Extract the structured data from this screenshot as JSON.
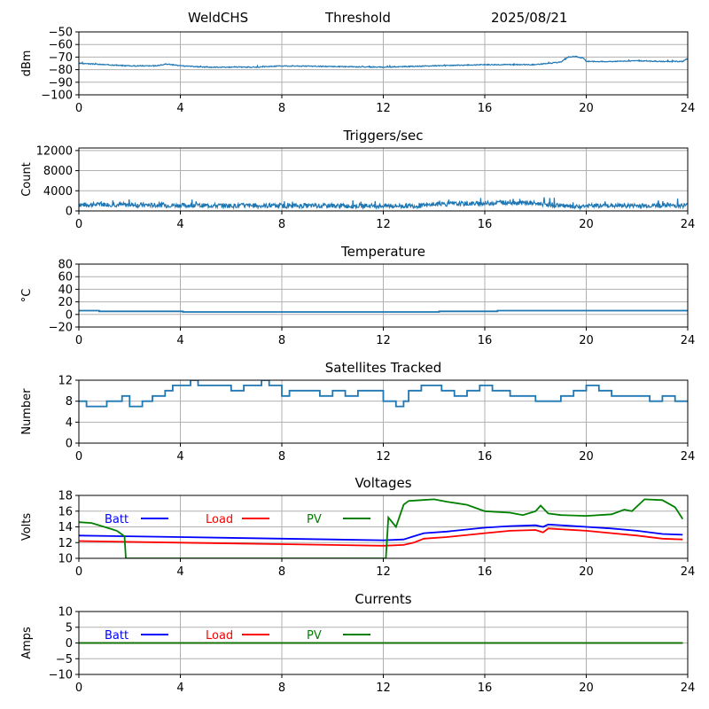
{
  "header": {
    "station": "WeldCHS",
    "mode": "Threshold",
    "date": "2025/08/21"
  },
  "colors": {
    "series": "#1f77b4",
    "batt": "#0000ff",
    "load": "#ff0000",
    "pv": "#008000",
    "grid": "#b0b0b0"
  },
  "chart_data": [
    {
      "type": "line",
      "title": "",
      "ylabel": "dBm",
      "xlim": [
        0,
        24
      ],
      "xticks": [
        0,
        4,
        8,
        12,
        16,
        20,
        24
      ],
      "ylim": [
        -100,
        -50
      ],
      "yticks": [
        -100,
        -90,
        -80,
        -70,
        -60,
        -50
      ],
      "grid": true,
      "series": [
        {
          "color": "#1f77b4",
          "noise": 0.35,
          "seed": 3,
          "x": [
            0,
            1,
            2,
            3,
            3.5,
            4,
            5,
            6,
            7,
            8,
            10,
            12,
            14,
            16,
            18,
            19,
            19.3,
            19.6,
            19.9,
            20,
            21,
            22,
            23,
            23.8,
            24
          ],
          "y": [
            -75,
            -76,
            -77,
            -77,
            -75.5,
            -77,
            -78,
            -78,
            -78,
            -77,
            -77.5,
            -78,
            -77,
            -76,
            -76,
            -74,
            -70,
            -69.5,
            -71,
            -73.5,
            -73.5,
            -73,
            -73.5,
            -73.5,
            -71
          ]
        }
      ]
    },
    {
      "type": "line",
      "title": "Triggers/sec",
      "ylabel": "Count",
      "xlim": [
        0,
        24
      ],
      "xticks": [
        0,
        4,
        8,
        12,
        16,
        20,
        24
      ],
      "ylim": [
        0,
        12500
      ],
      "yticks": [
        0,
        4000,
        8000,
        12000
      ],
      "grid": true,
      "series": [
        {
          "color": "#1f77b4",
          "noise": 450,
          "seed": 7,
          "x": [
            0,
            1,
            2,
            4,
            8,
            12,
            13.5,
            14,
            16,
            17,
            18,
            19,
            19.5,
            20,
            24
          ],
          "y": [
            1200,
            1300,
            1200,
            1100,
            1000,
            1000,
            1000,
            1300,
            1500,
            1700,
            1500,
            1100,
            700,
            1000,
            1100
          ]
        }
      ]
    },
    {
      "type": "line",
      "title": "Temperature",
      "ylabel": "°C",
      "xlim": [
        0,
        24
      ],
      "xticks": [
        0,
        4,
        8,
        12,
        16,
        20,
        24
      ],
      "ylim": [
        -20,
        80
      ],
      "yticks": [
        -20,
        0,
        20,
        40,
        60,
        80
      ],
      "grid": true,
      "series": [
        {
          "color": "#1f77b4",
          "step": true,
          "x": [
            0,
            0.8,
            4.1,
            14.2,
            16.5,
            24
          ],
          "y": [
            6,
            5,
            4,
            5,
            6,
            6
          ]
        }
      ]
    },
    {
      "type": "line",
      "title": "Satellites Tracked",
      "ylabel": "Number",
      "xlim": [
        0,
        24
      ],
      "xticks": [
        0,
        4,
        8,
        12,
        16,
        20,
        24
      ],
      "ylim": [
        0,
        12
      ],
      "yticks": [
        0,
        4,
        8,
        12
      ],
      "grid": true,
      "series": [
        {
          "color": "#1f77b4",
          "step": true,
          "x": [
            0,
            0.3,
            0.6,
            1.1,
            1.7,
            2,
            2.5,
            2.9,
            3.4,
            3.7,
            4.4,
            4.7,
            5,
            6,
            6.5,
            7.2,
            7.5,
            8,
            8.3,
            9,
            9.5,
            10,
            10.5,
            11,
            12,
            12.5,
            12.8,
            13,
            13.5,
            14.3,
            14.8,
            15.3,
            15.8,
            16.3,
            17,
            18,
            19,
            19.5,
            20,
            20.5,
            21,
            22,
            22.5,
            23,
            23.5,
            24
          ],
          "y": [
            8,
            7,
            7,
            8,
            9,
            7,
            8,
            9,
            10,
            11,
            12,
            11,
            11,
            10,
            11,
            12,
            11,
            9,
            10,
            10,
            9,
            10,
            9,
            10,
            8,
            7,
            8,
            10,
            11,
            10,
            9,
            10,
            11,
            10,
            9,
            8,
            9,
            10,
            11,
            10,
            9,
            9,
            8,
            9,
            8,
            8
          ]
        }
      ]
    },
    {
      "type": "line",
      "title": "Voltages",
      "ylabel": "Volts",
      "xlim": [
        0,
        24
      ],
      "xticks": [
        0,
        4,
        8,
        12,
        16,
        20,
        24
      ],
      "ylim": [
        10,
        18
      ],
      "yticks": [
        10,
        12,
        14,
        16,
        18
      ],
      "grid": true,
      "legend": [
        {
          "label": "Batt",
          "color": "#0000ff"
        },
        {
          "label": "Load",
          "color": "#ff0000"
        },
        {
          "label": "PV",
          "color": "#008000"
        }
      ],
      "series": [
        {
          "name": "Batt",
          "color": "#0000ff",
          "x": [
            0,
            4,
            8,
            12,
            12.8,
            13.2,
            13.6,
            14.5,
            16,
            17,
            18,
            18.3,
            18.5,
            20,
            21,
            22,
            23,
            23.8
          ],
          "y": [
            12.9,
            12.7,
            12.5,
            12.3,
            12.4,
            12.8,
            13.2,
            13.4,
            13.9,
            14.1,
            14.2,
            14.0,
            14.3,
            14.0,
            13.8,
            13.5,
            13.1,
            13.0
          ]
        },
        {
          "name": "Load",
          "color": "#ff0000",
          "x": [
            0,
            4,
            8,
            12,
            12.8,
            13.2,
            13.6,
            14.5,
            16,
            17,
            18,
            18.3,
            18.5,
            20,
            21,
            22,
            23,
            23.8
          ],
          "y": [
            12.2,
            12.0,
            11.8,
            11.6,
            11.7,
            12.0,
            12.5,
            12.7,
            13.2,
            13.5,
            13.6,
            13.3,
            13.8,
            13.5,
            13.2,
            12.9,
            12.5,
            12.4
          ]
        },
        {
          "name": "PV",
          "color": "#008000",
          "x": [
            0,
            0.5,
            1,
            1.5,
            1.8,
            1.85,
            12.1,
            12.2,
            12.5,
            12.8,
            13,
            13.5,
            14,
            14.5,
            15.3,
            16,
            17,
            17.5,
            18,
            18.2,
            18.5,
            19,
            20,
            21,
            21.5,
            21.8,
            22.3,
            23,
            23.5,
            23.8
          ],
          "y": [
            14.6,
            14.5,
            14.0,
            13.5,
            12.8,
            10.0,
            10.0,
            15.2,
            14.0,
            16.8,
            17.3,
            17.4,
            17.5,
            17.2,
            16.8,
            16.0,
            15.8,
            15.5,
            16.0,
            16.7,
            15.7,
            15.5,
            15.4,
            15.6,
            16.2,
            16.0,
            17.5,
            17.4,
            16.5,
            15.0
          ]
        }
      ]
    },
    {
      "type": "line",
      "title": "Currents",
      "ylabel": "Amps",
      "xlim": [
        0,
        24
      ],
      "xticks": [
        0,
        4,
        8,
        12,
        16,
        20,
        24
      ],
      "ylim": [
        -10,
        10
      ],
      "yticks": [
        -10,
        -5,
        0,
        5,
        10
      ],
      "grid": true,
      "legend": [
        {
          "label": "Batt",
          "color": "#0000ff"
        },
        {
          "label": "Load",
          "color": "#ff0000"
        },
        {
          "label": "PV",
          "color": "#008000"
        }
      ],
      "series": [
        {
          "name": "Batt",
          "color": "#0000ff",
          "x": [
            0,
            23.8
          ],
          "y": [
            0,
            0
          ]
        },
        {
          "name": "Load",
          "color": "#ff0000",
          "x": [
            0,
            23.8
          ],
          "y": [
            0,
            0
          ]
        },
        {
          "name": "PV",
          "color": "#008000",
          "x": [
            0,
            23.8
          ],
          "y": [
            0,
            0
          ]
        }
      ]
    }
  ]
}
